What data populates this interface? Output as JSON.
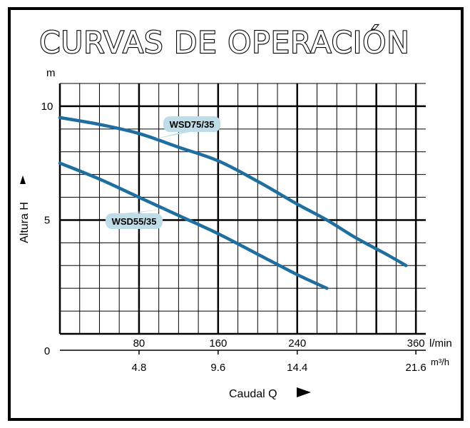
{
  "title": "CURVAS DE OPERACIÓN",
  "colors": {
    "curve": "#1e6e9f",
    "callout": "#bfdde8",
    "grid": "#000000"
  },
  "chart_data": {
    "type": "line",
    "title": "CURVAS DE OPERACIÓN",
    "ylabel": "Altura  H",
    "yunit": "m",
    "ylim": [
      0,
      11
    ],
    "yticks": [
      0,
      5,
      10
    ],
    "xlabel": "Caudal  Q",
    "xunit_top": "l/min",
    "xunit_bottom": "m³/h",
    "xlim": [
      0,
      370
    ],
    "xticks_top": [
      80,
      160,
      240,
      360
    ],
    "xticks_bottom": [
      "4.8",
      "9.6",
      "14.4",
      "21.6"
    ],
    "grid": true,
    "series": [
      {
        "name": "WSD75/35",
        "x": [
          0,
          40,
          80,
          120,
          160,
          200,
          240,
          270,
          300,
          330,
          350
        ],
        "y": [
          9.5,
          9.2,
          8.8,
          8.2,
          7.6,
          6.7,
          5.7,
          5.0,
          4.2,
          3.5,
          3.0
        ]
      },
      {
        "name": "WSD55/35",
        "x": [
          0,
          40,
          80,
          120,
          160,
          200,
          240,
          270
        ],
        "y": [
          7.5,
          6.8,
          6.0,
          5.2,
          4.4,
          3.5,
          2.6,
          2.0
        ]
      }
    ]
  }
}
